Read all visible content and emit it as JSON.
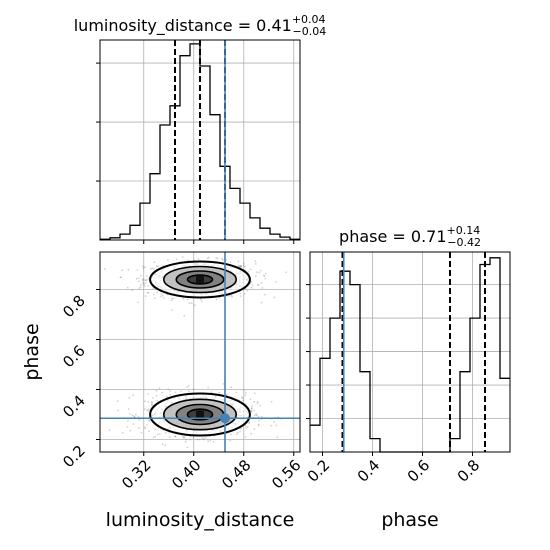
{
  "chart_data": {
    "type": "corner",
    "parameters": [
      "luminosity_distance",
      "phase"
    ],
    "truths": {
      "luminosity_distance": 0.45,
      "phase": 0.285
    },
    "colors": {
      "truth": "#4682b4",
      "hist": "#000000",
      "grid": "#b0b0b0",
      "points": "#7f7f7f",
      "contour_fill": "#555555"
    },
    "grid": true,
    "panels": [
      {
        "id": "luminosity_distance-hist",
        "type": "histogram",
        "title": {
          "main": "luminosity_distance = 0.41",
          "sup": "+0.04",
          "sub": "−0.04"
        },
        "xlim": [
          0.25,
          0.57
        ],
        "bins": {
          "start": 0.25,
          "width": 0.016,
          "counts": [
            0.5,
            1.5,
            4,
            10,
            25,
            45,
            78,
            91,
            125,
            133,
            118,
            85,
            50,
            35,
            25,
            15,
            8,
            4,
            2,
            0.5
          ]
        },
        "quantiles": [
          0.37,
          0.41,
          0.45
        ]
      },
      {
        "id": "phase-hist",
        "type": "histogram",
        "title": {
          "main": "phase = 0.71",
          "sup": "+0.14",
          "sub": "−0.42"
        },
        "xlim": [
          0.15,
          0.95
        ],
        "bins": {
          "start": 0.15,
          "width": 0.04,
          "counts": [
            4,
            14,
            20,
            27,
            25,
            12,
            2,
            0,
            0,
            0,
            0,
            0,
            0,
            0,
            2,
            12,
            20,
            28,
            29,
            11
          ]
        },
        "quantiles": [
          0.28,
          0.71,
          0.85
        ]
      },
      {
        "id": "joint",
        "type": "2d-density",
        "xlim": [
          0.25,
          0.57
        ],
        "ylim": [
          0.15,
          0.95
        ],
        "xlabel": "luminosity_distance",
        "ylabel": "phase",
        "modes": [
          {
            "x": 0.41,
            "y": 0.84,
            "sx": 0.038,
            "sy": 0.036,
            "n": 900
          },
          {
            "x": 0.41,
            "y": 0.3,
            "sx": 0.038,
            "sy": 0.042,
            "n": 900
          }
        ]
      }
    ],
    "x_ticks": {
      "luminosity_distance": [
        "0.32",
        "0.40",
        "0.48",
        "0.56"
      ],
      "phase": [
        "0.2",
        "0.4",
        "0.6",
        "0.8"
      ]
    },
    "y_ticks": {
      "phase": [
        "0.2",
        "0.4",
        "0.6",
        "0.8"
      ]
    },
    "axis_labels": {
      "x_left": "luminosity_distance",
      "x_right": "phase",
      "y_left": "phase"
    }
  }
}
